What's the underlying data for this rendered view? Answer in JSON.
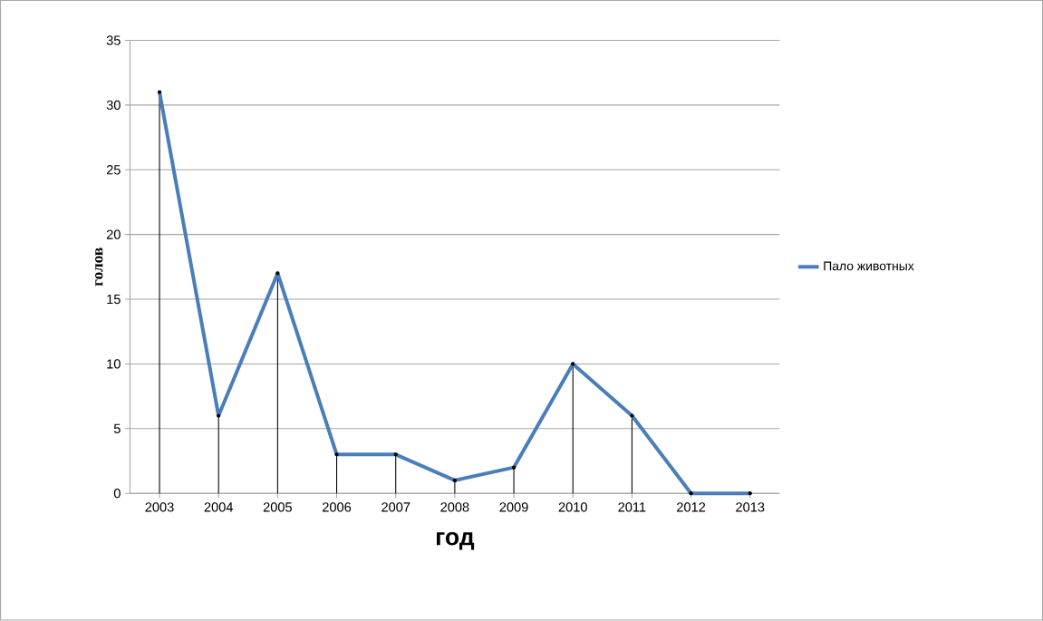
{
  "chart_data": {
    "type": "line",
    "xlabel": "год",
    "ylabel": "голов",
    "categories": [
      "2003",
      "2004",
      "2005",
      "2006",
      "2007",
      "2008",
      "2009",
      "2010",
      "2011",
      "2012",
      "2013"
    ],
    "series": [
      {
        "type": "lollipop",
        "color": "#000000",
        "values": [
          31,
          6,
          17,
          3,
          3,
          1,
          2,
          10,
          6,
          0,
          0
        ]
      },
      {
        "name": "Пало животных",
        "color": "#4a7ebb",
        "values": [
          31,
          6,
          17,
          3,
          3,
          1,
          2,
          10,
          6,
          0,
          0
        ]
      }
    ],
    "ylim": [
      0,
      35
    ],
    "yticks": [
      0,
      5,
      10,
      15,
      20,
      25,
      30,
      35
    ],
    "grid": "y",
    "legend": "right",
    "marker": "none",
    "line_style": "solid"
  }
}
